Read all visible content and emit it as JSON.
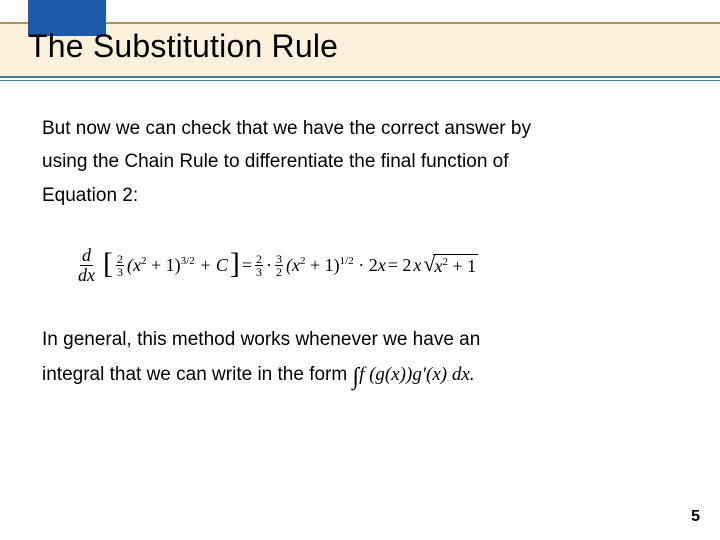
{
  "header": {
    "title": "The Substitution Rule",
    "accent_color": "#1e5aa8",
    "band_color": "#faf0dc",
    "band_border_top": "#a8935f",
    "band_border_bottom": "#4a7a9e"
  },
  "body": {
    "para1_a": "But now we can check that we have the correct answer by",
    "para1_b": "using the Chain Rule to differentiate the final function of",
    "para1_c": "Equation 2:",
    "para2_a": "In general, this method works whenever we have an",
    "para2_b_pre": "integral that we can write in the form ",
    "para2_b_int": "∫",
    "para2_b_expr": "f (g(x))g′(x) dx.",
    "equation": {
      "deriv_num": "d",
      "deriv_den": "dx",
      "lbracket": "[",
      "frac1_n": "2",
      "frac1_d": "3",
      "term1_base": "(x",
      "term1_exp2": "2",
      "term1_plus": " + 1)",
      "term1_pow": "3/2",
      "plusC": " + C",
      "rbracket": "]",
      "eq1": " = ",
      "frac2a_n": "2",
      "frac2a_d": "3",
      "dot1": " · ",
      "frac2b_n": "3",
      "frac2b_d": "2",
      "term2_base": "(x",
      "term2_exp2": "2",
      "term2_plus": " + 1)",
      "term2_pow": "1/2",
      "dot2": " · 2",
      "term2_x": "x",
      "eq2": " = 2",
      "rhs_x": "x",
      "sqrt_sym": "√",
      "radicand_a": "x",
      "radicand_exp": "2",
      "radicand_b": " + 1"
    }
  },
  "page_number": "5"
}
